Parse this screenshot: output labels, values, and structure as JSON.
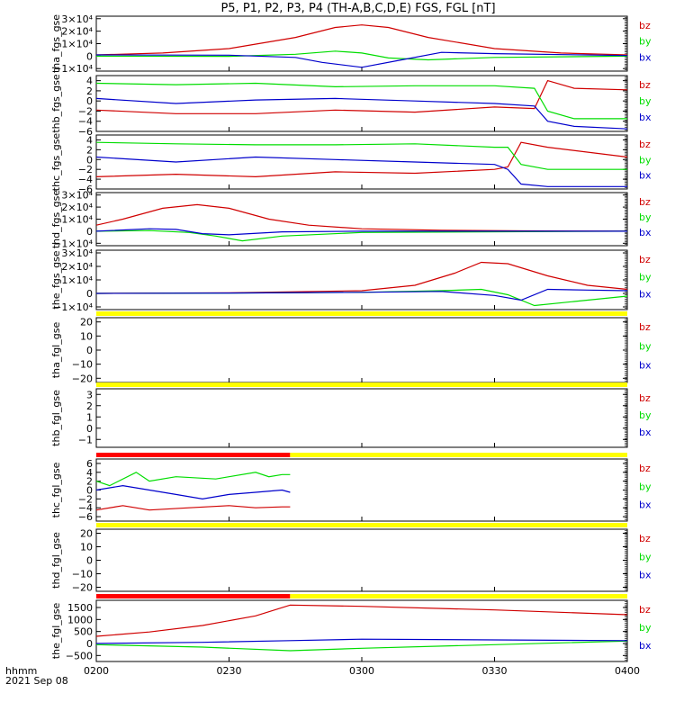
{
  "title": "P5, P1, P2, P3, P4 (TH-A,B,C,D,E) FGS, FGL [nT]",
  "footer": {
    "time_label": "hhmm",
    "date_label": "2021 Sep 08"
  },
  "x_ticks": [
    "0200",
    "0230",
    "0300",
    "0330",
    "0400"
  ],
  "colors": {
    "bz": "#d00000",
    "by": "#00dd00",
    "bx": "#0000cc",
    "bar_red": "#ff0000",
    "bar_yellow": "#ffff00"
  },
  "chart_data": [
    {
      "type": "line",
      "ylabel": "tha_fgs_gse",
      "x_unit": "hours since 0200 UT",
      "yticks": [
        "3×10⁴",
        "2×10⁴",
        "1×10⁴",
        "0",
        "−1×10⁴"
      ],
      "ylim": [
        -12000,
        32000
      ],
      "legend": [
        "bz",
        "by",
        "bx"
      ],
      "series": [
        {
          "name": "bz",
          "x": [
            0,
            0.25,
            0.5,
            0.75,
            0.9,
            1.0,
            1.1,
            1.25,
            1.5,
            1.75,
            2.0
          ],
          "values": [
            1000,
            2500,
            6000,
            15000,
            23000,
            25000,
            23000,
            15000,
            6000,
            2500,
            1000
          ]
        },
        {
          "name": "by",
          "x": [
            0,
            0.5,
            0.75,
            0.9,
            1.0,
            1.1,
            1.25,
            1.5,
            2.0
          ],
          "values": [
            0,
            -200,
            1500,
            4000,
            2500,
            -1500,
            -3000,
            -1000,
            0
          ]
        },
        {
          "name": "bx",
          "x": [
            0,
            0.5,
            0.75,
            0.85,
            1.0,
            1.15,
            1.3,
            1.5,
            2.0
          ],
          "values": [
            1000,
            800,
            -1000,
            -5000,
            -9000,
            -3000,
            3000,
            2000,
            500
          ]
        }
      ]
    },
    {
      "type": "line",
      "ylabel": "thb_fgs_gse",
      "x_unit": "hours since 0200 UT",
      "yticks": [
        "4",
        "2",
        "0",
        "−2",
        "−4",
        "−6"
      ],
      "ylim": [
        -6,
        5
      ],
      "legend": [
        "bz",
        "by",
        "bx"
      ],
      "series": [
        {
          "name": "bz",
          "x": [
            0,
            0.3,
            0.6,
            0.9,
            1.2,
            1.5,
            1.65,
            1.7,
            1.8,
            2.0
          ],
          "values": [
            -1.8,
            -2.5,
            -2.5,
            -1.8,
            -2.2,
            -1.2,
            -1.5,
            4,
            2.5,
            2.2
          ]
        },
        {
          "name": "by",
          "x": [
            0,
            0.3,
            0.6,
            0.9,
            1.2,
            1.5,
            1.65,
            1.7,
            1.8,
            2.0
          ],
          "values": [
            3.5,
            3.2,
            3.5,
            2.8,
            3.0,
            3.0,
            2.5,
            -2,
            -3.5,
            -3.5
          ]
        },
        {
          "name": "bx",
          "x": [
            0,
            0.3,
            0.6,
            0.9,
            1.2,
            1.5,
            1.65,
            1.7,
            1.8,
            2.0
          ],
          "values": [
            0.5,
            -0.5,
            0.2,
            0.5,
            0,
            -0.5,
            -1,
            -4,
            -5,
            -5.5
          ]
        }
      ]
    },
    {
      "type": "line",
      "ylabel": "thc_fgs_gse",
      "x_unit": "hours since 0200 UT",
      "yticks": [
        "4",
        "2",
        "0",
        "−2",
        "−4",
        "−6"
      ],
      "ylim": [
        -6,
        5
      ],
      "legend": [
        "bz",
        "by",
        "bx"
      ],
      "series": [
        {
          "name": "bz",
          "x": [
            0,
            0.3,
            0.6,
            0.9,
            1.2,
            1.5,
            1.55,
            1.6,
            1.7,
            2.0
          ],
          "values": [
            -3.5,
            -3,
            -3.5,
            -2.5,
            -2.8,
            -2,
            -1.5,
            3.5,
            2.5,
            0.5
          ]
        },
        {
          "name": "by",
          "x": [
            0,
            0.3,
            0.6,
            0.9,
            1.2,
            1.5,
            1.55,
            1.6,
            1.7,
            2.0
          ],
          "values": [
            3.5,
            3.2,
            3.0,
            3.0,
            3.2,
            2.5,
            2.5,
            -1,
            -2,
            -2
          ]
        },
        {
          "name": "bx",
          "x": [
            0,
            0.3,
            0.6,
            0.9,
            1.2,
            1.5,
            1.55,
            1.6,
            1.7,
            2.0
          ],
          "values": [
            0.5,
            -0.5,
            0.5,
            0,
            -0.5,
            -1,
            -2,
            -5,
            -5.5,
            -5.5
          ]
        }
      ]
    },
    {
      "type": "line",
      "ylabel": "thd_fgs_gse",
      "x_unit": "hours since 0200 UT",
      "yticks": [
        "3×10⁴",
        "2×10⁴",
        "1×10⁴",
        "0",
        "−1×10⁴"
      ],
      "ylim": [
        -12000,
        32000
      ],
      "legend": [
        "bz",
        "by",
        "bx"
      ],
      "series": [
        {
          "name": "bz",
          "x": [
            0,
            0.1,
            0.25,
            0.38,
            0.5,
            0.65,
            0.8,
            1.0,
            1.3,
            1.6,
            2.0
          ],
          "values": [
            5000,
            10000,
            19000,
            22000,
            19000,
            10000,
            5000,
            2000,
            800,
            300,
            0
          ]
        },
        {
          "name": "by",
          "x": [
            0,
            0.2,
            0.35,
            0.45,
            0.55,
            0.7,
            1.0,
            2.0
          ],
          "values": [
            0,
            500,
            -1000,
            -4000,
            -8000,
            -4000,
            -1000,
            0
          ]
        },
        {
          "name": "bx",
          "x": [
            0,
            0.2,
            0.3,
            0.4,
            0.5,
            0.7,
            1.0,
            2.0
          ],
          "values": [
            0,
            2000,
            1500,
            -2000,
            -3000,
            -500,
            0,
            0
          ]
        }
      ]
    },
    {
      "type": "line",
      "ylabel": "the_fgs_gse",
      "x_unit": "hours since 0200 UT",
      "yticks": [
        "3×10⁴",
        "2×10⁴",
        "1×10⁴",
        "0",
        "−1×10⁴"
      ],
      "ylim": [
        -12000,
        32000
      ],
      "legend": [
        "bz",
        "by",
        "bx"
      ],
      "series": [
        {
          "name": "bz",
          "x": [
            0,
            0.5,
            1.0,
            1.2,
            1.35,
            1.45,
            1.55,
            1.7,
            1.85,
            2.0
          ],
          "values": [
            0,
            500,
            2000,
            6000,
            15000,
            23000,
            22000,
            13000,
            6000,
            3000
          ]
        },
        {
          "name": "by",
          "x": [
            0,
            0.5,
            1.0,
            1.3,
            1.45,
            1.55,
            1.65,
            1.8,
            2.0
          ],
          "values": [
            0,
            300,
            800,
            2000,
            3000,
            -1000,
            -9000,
            -6000,
            -2000
          ]
        },
        {
          "name": "bx",
          "x": [
            0,
            0.5,
            1.0,
            1.3,
            1.5,
            1.6,
            1.7,
            1.85,
            2.0
          ],
          "values": [
            0,
            300,
            800,
            1500,
            -1500,
            -5000,
            3000,
            2500,
            2000
          ]
        }
      ]
    },
    {
      "type": "line",
      "ylabel": "tha_fgl_gse",
      "x_unit": "hours since 0200 UT",
      "yticks": [
        "20",
        "10",
        "0",
        "−10",
        "−20"
      ],
      "ylim": [
        -23,
        23
      ],
      "legend": [
        "bz",
        "by",
        "bx"
      ],
      "status_bars": [
        {
          "color": "yellow",
          "x": [
            0,
            2.0
          ]
        }
      ],
      "series": []
    },
    {
      "type": "line",
      "ylabel": "thb_fgl_gse",
      "x_unit": "hours since 0200 UT",
      "yticks": [
        "3",
        "2",
        "1",
        "0",
        "−1"
      ],
      "ylim": [
        -1.7,
        3.5
      ],
      "legend": [
        "bz",
        "by",
        "bx"
      ],
      "status_bars": [
        {
          "color": "yellow",
          "x": [
            0,
            2.0
          ]
        }
      ],
      "series": []
    },
    {
      "type": "line",
      "ylabel": "thc_fgl_gse",
      "x_unit": "hours since 0200 UT",
      "yticks": [
        "6",
        "4",
        "2",
        "0",
        "−2",
        "−4",
        "−6"
      ],
      "ylim": [
        -7,
        7
      ],
      "legend": [
        "bz",
        "by",
        "bx"
      ],
      "status_bars": [
        {
          "color": "red",
          "x": [
            0,
            0.73
          ]
        },
        {
          "color": "yellow",
          "x": [
            0.73,
            2.0
          ]
        }
      ],
      "series": [
        {
          "name": "bz",
          "x": [
            0,
            0.1,
            0.2,
            0.35,
            0.5,
            0.6,
            0.7,
            0.73
          ],
          "values": [
            -4.5,
            -3.5,
            -4.5,
            -4,
            -3.5,
            -4,
            -3.8,
            -3.8
          ]
        },
        {
          "name": "by",
          "x": [
            0,
            0.05,
            0.15,
            0.2,
            0.3,
            0.45,
            0.5,
            0.6,
            0.65,
            0.7,
            0.73
          ],
          "values": [
            2,
            1,
            4,
            2,
            3,
            2.5,
            3,
            4,
            3,
            3.5,
            3.5
          ]
        },
        {
          "name": "bx",
          "x": [
            0,
            0.1,
            0.2,
            0.3,
            0.4,
            0.5,
            0.6,
            0.7,
            0.73
          ],
          "values": [
            0,
            1,
            0,
            -1,
            -2,
            -1,
            -0.5,
            0,
            -0.5
          ]
        }
      ]
    },
    {
      "type": "line",
      "ylabel": "thd_fgl_gse",
      "x_unit": "hours since 0200 UT",
      "yticks": [
        "20",
        "10",
        "0",
        "−10",
        "−20"
      ],
      "ylim": [
        -23,
        23
      ],
      "legend": [
        "bz",
        "by",
        "bx"
      ],
      "status_bars": [
        {
          "color": "yellow",
          "x": [
            0,
            2.0
          ]
        }
      ],
      "series": []
    },
    {
      "type": "line",
      "ylabel": "the_fgl_gse",
      "x_unit": "hours since 0200 UT",
      "yticks": [
        "1500",
        "1000",
        "500",
        "0",
        "−500"
      ],
      "ylim": [
        -750,
        1800
      ],
      "legend": [
        "bz",
        "by",
        "bx"
      ],
      "status_bars": [
        {
          "color": "red",
          "x": [
            0,
            0.73
          ]
        },
        {
          "color": "yellow",
          "x": [
            0.73,
            2.0
          ]
        }
      ],
      "series": [
        {
          "name": "bz",
          "x": [
            0,
            0.2,
            0.4,
            0.6,
            0.73,
            1.0,
            1.5,
            2.0
          ],
          "values": [
            300,
            480,
            750,
            1150,
            1600,
            1550,
            1400,
            1200
          ]
        },
        {
          "name": "by",
          "x": [
            0,
            0.4,
            0.73,
            1.0,
            1.5,
            2.0
          ],
          "values": [
            -50,
            -150,
            -300,
            -200,
            -50,
            100
          ]
        },
        {
          "name": "bx",
          "x": [
            0,
            0.4,
            0.73,
            1.0,
            1.5,
            2.0
          ],
          "values": [
            0,
            50,
            120,
            180,
            150,
            120
          ]
        }
      ]
    }
  ]
}
